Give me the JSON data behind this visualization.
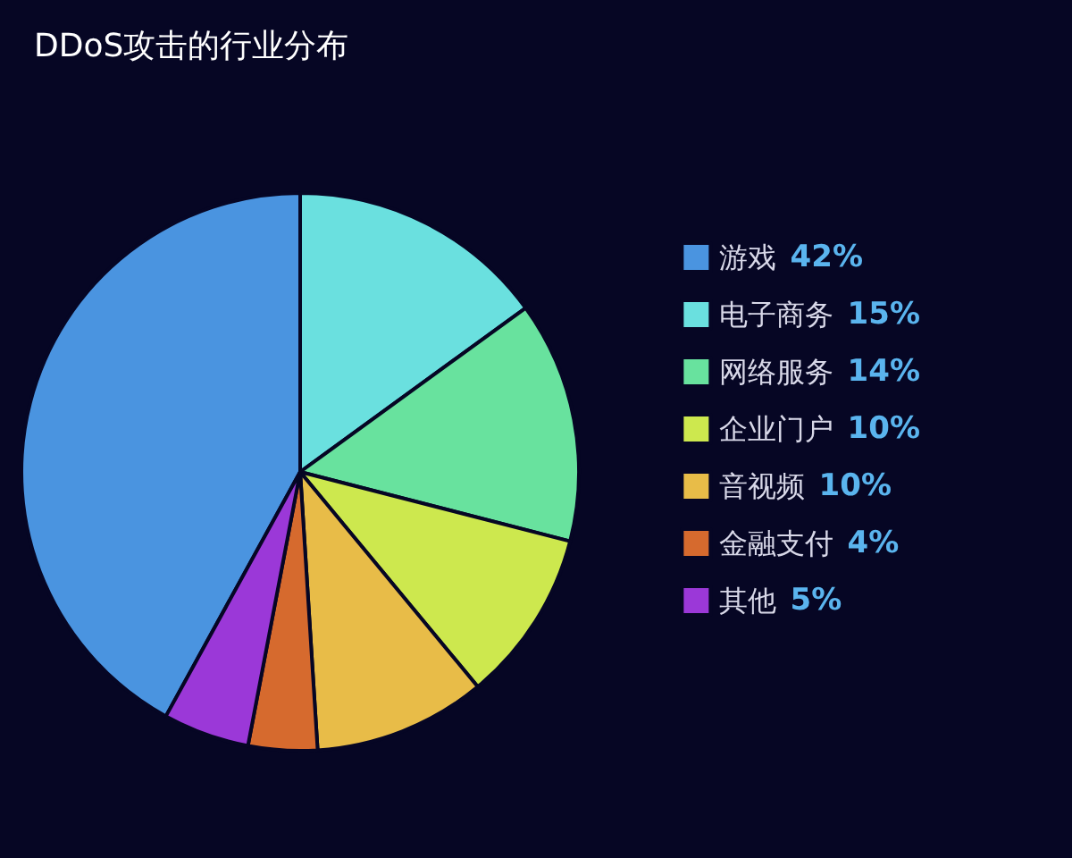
{
  "chart_data": {
    "type": "pie",
    "title": "DDoS攻击的行业分布",
    "categories": [
      "游戏",
      "电子商务",
      "网络服务",
      "企业门户",
      "音视频",
      "金融支付",
      "其他"
    ],
    "values": [
      42,
      15,
      14,
      10,
      10,
      4,
      5
    ],
    "value_labels": [
      "42%",
      "15%",
      "14%",
      "10%",
      "10%",
      "4%",
      "5%"
    ],
    "colors": [
      "#4a94e0",
      "#6ae0df",
      "#68e29e",
      "#cde84e",
      "#e8bc48",
      "#d66a2e",
      "#9b38d8"
    ],
    "legend": "right"
  }
}
